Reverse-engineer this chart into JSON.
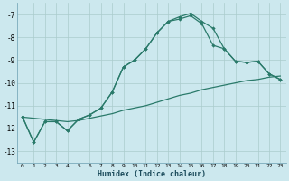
{
  "xlabel": "Humidex (Indice chaleur)",
  "bg_color": "#cce8ee",
  "grid_color": "#aacccc",
  "line_color": "#2a7a6a",
  "xlim": [
    -0.5,
    23.5
  ],
  "ylim": [
    -13.5,
    -6.5
  ],
  "yticks": [
    -13,
    -12,
    -11,
    -10,
    -9,
    -8,
    -7
  ],
  "xticks": [
    0,
    1,
    2,
    3,
    4,
    5,
    6,
    7,
    8,
    9,
    10,
    11,
    12,
    13,
    14,
    15,
    16,
    17,
    18,
    19,
    20,
    21,
    22,
    23
  ],
  "series1_x": [
    0,
    1,
    2,
    3,
    4,
    5,
    6,
    7,
    8,
    9,
    10,
    11,
    12,
    13,
    14,
    15,
    16,
    17,
    18,
    19,
    20,
    21,
    22,
    23
  ],
  "series1_y": [
    -11.5,
    -12.6,
    -11.7,
    -11.7,
    -12.1,
    -11.6,
    -11.4,
    -11.1,
    -10.4,
    -9.3,
    -9.0,
    -8.5,
    -7.8,
    -7.3,
    -7.1,
    -6.95,
    -7.3,
    -7.6,
    -8.5,
    -9.05,
    -9.1,
    -9.05,
    -9.6,
    -9.85
  ],
  "series2_x": [
    0,
    1,
    2,
    3,
    4,
    5,
    6,
    7,
    8,
    9,
    10,
    11,
    12,
    13,
    14,
    15,
    16,
    17,
    18,
    19,
    20,
    21,
    22,
    23
  ],
  "series2_y": [
    -11.5,
    -12.6,
    -11.7,
    -11.7,
    -12.1,
    -11.6,
    -11.4,
    -11.1,
    -10.4,
    -9.3,
    -9.0,
    -8.5,
    -7.8,
    -7.3,
    -7.2,
    -7.05,
    -7.4,
    -8.35,
    -8.5,
    -9.05,
    -9.1,
    -9.05,
    -9.6,
    -9.85
  ],
  "series3_x": [
    0,
    1,
    2,
    3,
    4,
    5,
    6,
    7,
    8,
    9,
    10,
    11,
    12,
    13,
    14,
    15,
    16,
    17,
    18,
    19,
    20,
    21,
    22,
    23
  ],
  "series3_y": [
    -11.5,
    -11.55,
    -11.6,
    -11.65,
    -11.7,
    -11.65,
    -11.55,
    -11.45,
    -11.35,
    -11.2,
    -11.1,
    -11.0,
    -10.85,
    -10.7,
    -10.55,
    -10.45,
    -10.3,
    -10.2,
    -10.1,
    -10.0,
    -9.9,
    -9.85,
    -9.75,
    -9.7
  ]
}
